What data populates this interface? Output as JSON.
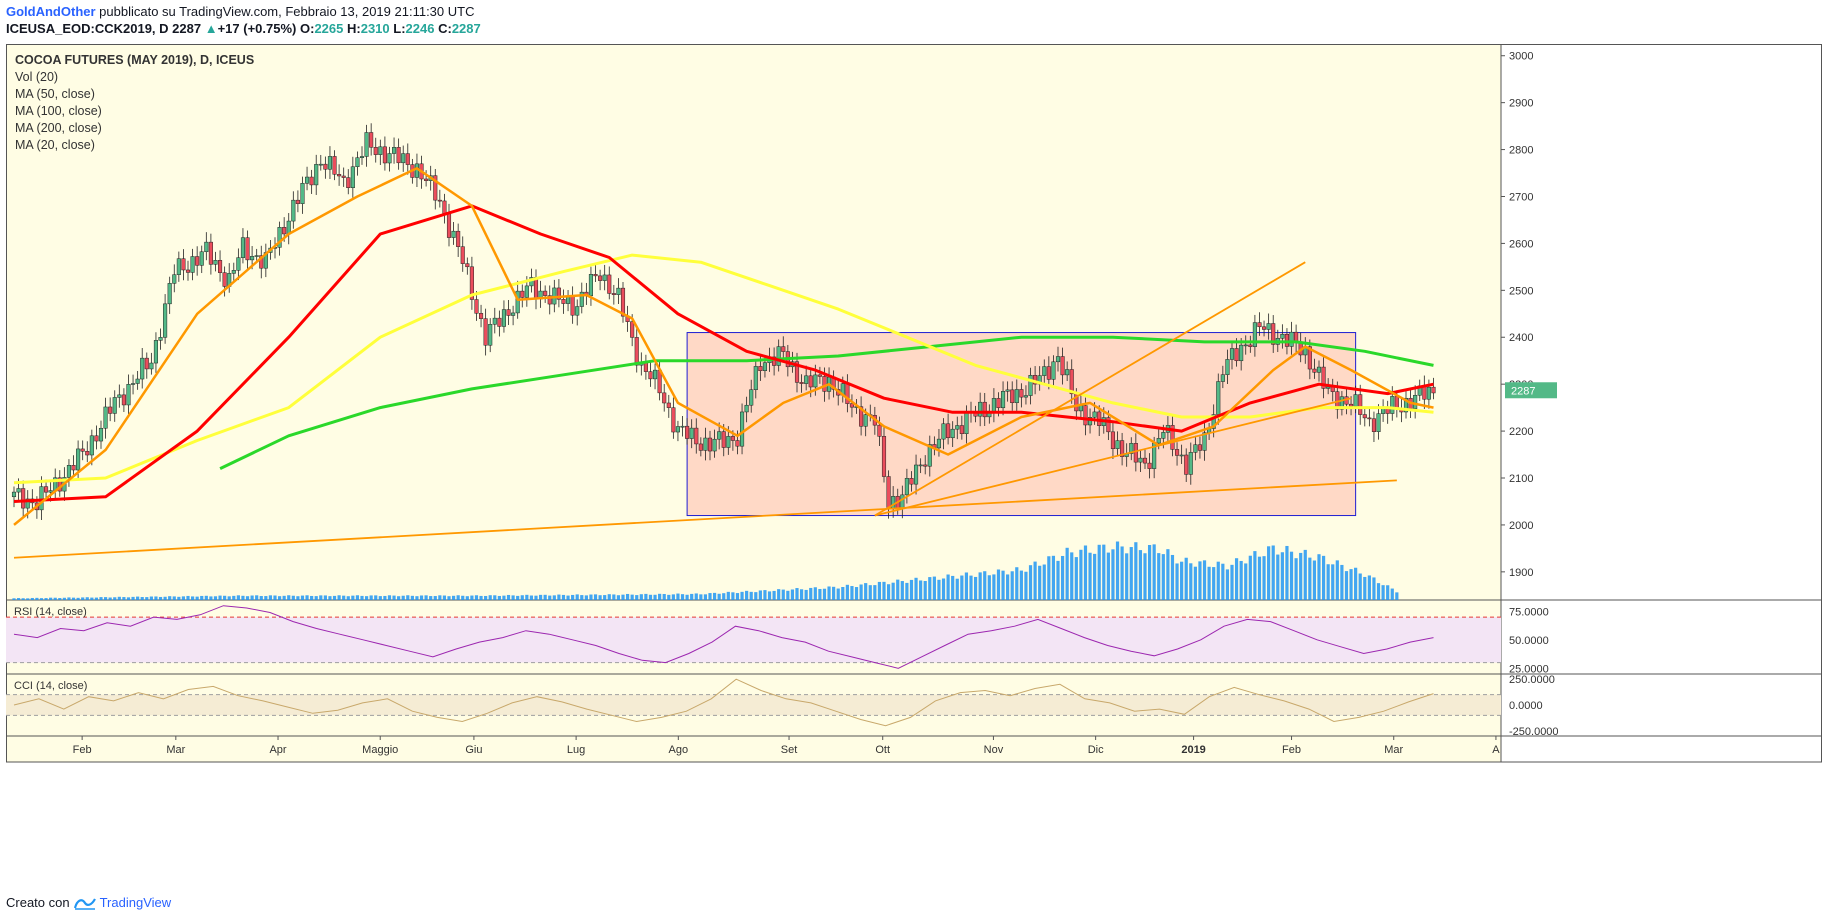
{
  "header": {
    "author": "GoldAndOther",
    "published": " pubblicato su TradingView.com, Febbraio 13, 2019 21:11:30 UTC",
    "symbol": "ICEUSA_EOD:CCK2019, D",
    "last": "2287",
    "change": "+17 (+0.75%)",
    "o_label": "O:",
    "o_value": "2265",
    "h_label": "H:",
    "h_value": "2310",
    "l_label": "L:",
    "l_value": "2246",
    "c_label": "C:",
    "c_value": "2287"
  },
  "legend": {
    "title": "COCOA FUTURES (MAY 2019), D, ICEUS",
    "items": [
      "Vol (20)",
      "MA (50, close)",
      "MA (100, close)",
      "MA (200, close)",
      "MA (20, close)"
    ]
  },
  "rsi_label": "RSI (14, close)",
  "cci_label": "CCI (14, close)",
  "footer": {
    "created_with": "Creato con",
    "brand": "TradingView"
  },
  "colors": {
    "background": "#fffde4",
    "candle_up": "#53b987",
    "candle_down": "#eb4d5c",
    "ma20": "#ff9800",
    "ma50": "#ff0000",
    "ma100": "#ffff3b",
    "ma200": "#2ad82a",
    "volume": "#2196f3",
    "rectangle_fill": "#ffccbc",
    "rectangle_border": "#1e1ed2",
    "trendline": "#ff9800",
    "rsi_line": "#9c27b0",
    "cci_line": "#c8a86b",
    "price_tag": "#53b987"
  },
  "chart_data": [
    {
      "type": "candlestick",
      "title": "COCOA FUTURES (MAY 2019), D, ICEUS",
      "x_ticks": [
        "Feb",
        "Mar",
        "Apr",
        "Maggio",
        "Giu",
        "Lug",
        "Ago",
        "Set",
        "Ott",
        "Nov",
        "Dic",
        "2019",
        "Feb",
        "Mar",
        "A"
      ],
      "y_ticks": [
        "1900",
        "2000",
        "2100",
        "2200",
        "2300",
        "2400",
        "2500",
        "2600",
        "2700",
        "2800",
        "2900",
        "3000"
      ],
      "ylim": [
        1840,
        3025
      ],
      "last_price": "2287",
      "close_path": [
        [
          0,
          2060
        ],
        [
          5,
          2050
        ],
        [
          8,
          2075
        ],
        [
          15,
          2150
        ],
        [
          22,
          2260
        ],
        [
          30,
          2350
        ],
        [
          35,
          2540
        ],
        [
          42,
          2580
        ],
        [
          47,
          2520
        ],
        [
          50,
          2590
        ],
        [
          55,
          2560
        ],
        [
          60,
          2660
        ],
        [
          67,
          2780
        ],
        [
          72,
          2730
        ],
        [
          77,
          2810
        ],
        [
          82,
          2790
        ],
        [
          88,
          2760
        ],
        [
          93,
          2690
        ],
        [
          98,
          2560
        ],
        [
          103,
          2400
        ],
        [
          108,
          2460
        ],
        [
          113,
          2510
        ],
        [
          118,
          2480
        ],
        [
          123,
          2470
        ],
        [
          128,
          2540
        ],
        [
          132,
          2480
        ],
        [
          137,
          2340
        ],
        [
          141,
          2290
        ],
        [
          145,
          2200
        ],
        [
          152,
          2170
        ],
        [
          158,
          2190
        ],
        [
          163,
          2350
        ],
        [
          168,
          2360
        ],
        [
          173,
          2300
        ],
        [
          178,
          2310
        ],
        [
          183,
          2250
        ],
        [
          188,
          2220
        ],
        [
          191,
          2050
        ],
        [
          194,
          2060
        ],
        [
          199,
          2150
        ],
        [
          204,
          2200
        ],
        [
          209,
          2230
        ],
        [
          214,
          2260
        ],
        [
          219,
          2280
        ],
        [
          224,
          2310
        ],
        [
          228,
          2360
        ],
        [
          232,
          2250
        ],
        [
          237,
          2220
        ],
        [
          242,
          2160
        ],
        [
          247,
          2130
        ],
        [
          251,
          2200
        ],
        [
          256,
          2130
        ],
        [
          260,
          2180
        ],
        [
          264,
          2330
        ],
        [
          268,
          2380
        ],
        [
          272,
          2420
        ],
        [
          277,
          2400
        ],
        [
          282,
          2370
        ],
        [
          287,
          2280
        ],
        [
          292,
          2260
        ],
        [
          296,
          2220
        ],
        [
          301,
          2250
        ],
        [
          306,
          2270
        ],
        [
          310,
          2287
        ]
      ],
      "ma20_path": [
        [
          0,
          2000
        ],
        [
          20,
          2160
        ],
        [
          40,
          2450
        ],
        [
          60,
          2620
        ],
        [
          75,
          2700
        ],
        [
          88,
          2760
        ],
        [
          100,
          2680
        ],
        [
          110,
          2480
        ],
        [
          125,
          2490
        ],
        [
          135,
          2440
        ],
        [
          145,
          2260
        ],
        [
          158,
          2190
        ],
        [
          168,
          2260
        ],
        [
          178,
          2300
        ],
        [
          190,
          2210
        ],
        [
          204,
          2150
        ],
        [
          220,
          2230
        ],
        [
          235,
          2260
        ],
        [
          250,
          2170
        ],
        [
          262,
          2210
        ],
        [
          275,
          2330
        ],
        [
          282,
          2380
        ],
        [
          292,
          2330
        ],
        [
          305,
          2260
        ],
        [
          310,
          2250
        ]
      ],
      "ma50_path": [
        [
          0,
          2050
        ],
        [
          20,
          2060
        ],
        [
          40,
          2200
        ],
        [
          60,
          2400
        ],
        [
          80,
          2620
        ],
        [
          100,
          2680
        ],
        [
          115,
          2620
        ],
        [
          130,
          2570
        ],
        [
          145,
          2450
        ],
        [
          160,
          2370
        ],
        [
          175,
          2330
        ],
        [
          190,
          2270
        ],
        [
          205,
          2240
        ],
        [
          220,
          2240
        ],
        [
          240,
          2220
        ],
        [
          255,
          2200
        ],
        [
          270,
          2260
        ],
        [
          285,
          2300
        ],
        [
          300,
          2280
        ],
        [
          310,
          2300
        ]
      ],
      "ma100_path": [
        [
          0,
          2090
        ],
        [
          20,
          2100
        ],
        [
          40,
          2180
        ],
        [
          60,
          2250
        ],
        [
          80,
          2400
        ],
        [
          100,
          2490
        ],
        [
          120,
          2540
        ],
        [
          135,
          2575
        ],
        [
          150,
          2560
        ],
        [
          165,
          2510
        ],
        [
          180,
          2460
        ],
        [
          195,
          2400
        ],
        [
          210,
          2340
        ],
        [
          225,
          2300
        ],
        [
          240,
          2260
        ],
        [
          255,
          2230
        ],
        [
          270,
          2230
        ],
        [
          285,
          2250
        ],
        [
          300,
          2250
        ],
        [
          310,
          2240
        ]
      ],
      "ma200_path": [
        [
          45,
          2120
        ],
        [
          60,
          2190
        ],
        [
          80,
          2250
        ],
        [
          100,
          2290
        ],
        [
          120,
          2320
        ],
        [
          140,
          2350
        ],
        [
          160,
          2350
        ],
        [
          180,
          2360
        ],
        [
          200,
          2380
        ],
        [
          220,
          2400
        ],
        [
          240,
          2400
        ],
        [
          260,
          2390
        ],
        [
          280,
          2390
        ],
        [
          295,
          2370
        ],
        [
          310,
          2340
        ]
      ],
      "rectangle": {
        "x": [
          147,
          293
        ],
        "y": [
          2020,
          2410
        ]
      },
      "trendlines": [
        {
          "from": [
            0,
            1930
          ],
          "to": [
            302,
            2095
          ]
        },
        {
          "from": [
            188,
            2020
          ],
          "to": [
            292,
            2270
          ]
        },
        {
          "from": [
            188,
            2020
          ],
          "to": [
            282,
            2560
          ]
        }
      ],
      "volume": [
        [
          0,
          0.02
        ],
        [
          50,
          0.05
        ],
        [
          100,
          0.05
        ],
        [
          150,
          0.07
        ],
        [
          180,
          0.15
        ],
        [
          210,
          0.3
        ],
        [
          220,
          0.35
        ],
        [
          230,
          0.55
        ],
        [
          240,
          0.62
        ],
        [
          250,
          0.6
        ],
        [
          255,
          0.45
        ],
        [
          265,
          0.4
        ],
        [
          275,
          0.6
        ],
        [
          285,
          0.5
        ],
        [
          295,
          0.3
        ],
        [
          302,
          0.1
        ]
      ]
    },
    {
      "type": "line",
      "title": "RSI (14, close)",
      "y_ticks": [
        "25.0000",
        "50.0000",
        "75.0000"
      ],
      "ylim": [
        20,
        85
      ],
      "bands": [
        30,
        70
      ],
      "values": [
        55,
        52,
        60,
        58,
        65,
        62,
        70,
        68,
        72,
        80,
        78,
        74,
        66,
        60,
        55,
        50,
        45,
        40,
        35,
        42,
        48,
        52,
        58,
        55,
        50,
        45,
        38,
        32,
        30,
        38,
        48,
        62,
        58,
        52,
        48,
        40,
        35,
        30,
        25,
        35,
        45,
        55,
        58,
        62,
        68,
        60,
        52,
        45,
        40,
        36,
        42,
        50,
        62,
        68,
        66,
        58,
        50,
        44,
        38,
        42,
        48,
        52
      ]
    },
    {
      "type": "line",
      "title": "CCI (14, close)",
      "y_ticks": [
        "250.0000",
        "0.0000",
        "-250.0000"
      ],
      "ylim": [
        -300,
        300
      ],
      "bands": [
        -100,
        100
      ],
      "values": [
        0,
        60,
        -40,
        80,
        40,
        120,
        60,
        150,
        180,
        90,
        40,
        -20,
        -80,
        -50,
        20,
        60,
        -60,
        -120,
        -160,
        -80,
        20,
        80,
        30,
        -40,
        -100,
        -160,
        -120,
        -60,
        60,
        250,
        140,
        60,
        20,
        -60,
        -140,
        -200,
        -120,
        40,
        120,
        140,
        90,
        160,
        200,
        60,
        20,
        -60,
        -40,
        -90,
        80,
        170,
        100,
        40,
        -40,
        -160,
        -120,
        -60,
        30,
        110
      ]
    }
  ]
}
